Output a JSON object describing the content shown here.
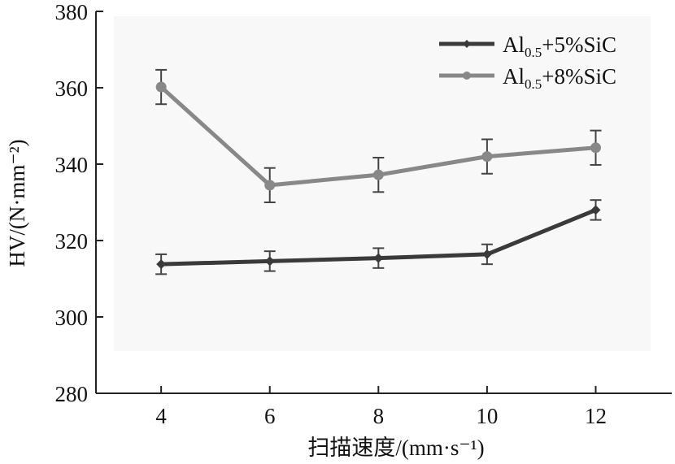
{
  "chart_data": {
    "type": "line",
    "x": [
      4,
      6,
      8,
      10,
      12
    ],
    "xlim": [
      2.8,
      13.4
    ],
    "ylim": [
      280,
      380
    ],
    "x_ticks": [
      4,
      6,
      8,
      10,
      12
    ],
    "y_ticks": [
      280,
      300,
      320,
      340,
      360,
      380
    ],
    "xlabel": "扫描速度/(mm·s⁻¹)",
    "ylabel": "HV/(N·mm⁻²)",
    "grid": false,
    "legend_position": "top-right",
    "series": [
      {
        "name": "Al0.5+5%SiC",
        "name_main": "Al",
        "name_sub": "0.5",
        "name_rest": "+5%SiC",
        "marker": "diamond",
        "color": "#3a3a3a",
        "values": [
          313.8,
          314.6,
          315.4,
          316.4,
          328.0
        ],
        "errors": [
          2.6,
          2.6,
          2.6,
          2.6,
          2.6
        ]
      },
      {
        "name": "Al0.5+8%SiC",
        "name_main": "Al",
        "name_sub": "0.5",
        "name_rest": "+8%SiC",
        "marker": "circle",
        "color": "#888888",
        "values": [
          360.2,
          334.5,
          337.2,
          342.0,
          344.3
        ],
        "errors": [
          4.5,
          4.5,
          4.5,
          4.5,
          4.5
        ]
      }
    ]
  }
}
